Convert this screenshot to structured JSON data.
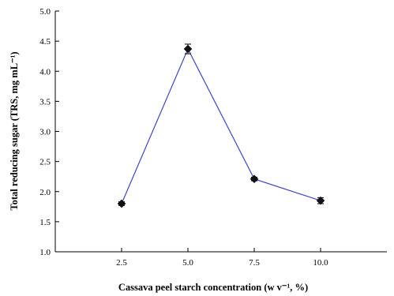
{
  "chart_data": {
    "type": "scatter",
    "x": [
      2.5,
      5.0,
      7.5,
      10.0
    ],
    "series": [
      {
        "values": [
          1.8,
          4.37,
          2.21,
          1.85
        ],
        "errors": [
          0.03,
          0.08,
          0.03,
          0.05
        ],
        "color": "#3b46c8",
        "marker": "diamond",
        "lines": true
      }
    ],
    "xlabel": "Cassava peel starch concentration (w v⁻¹, %)",
    "ylabel": "Total reducing sugar (TRS, mg mL⁻¹)",
    "xlim": [
      0.0,
      12.5
    ],
    "ylim": [
      1.0,
      5.0
    ],
    "xticks": [
      "2.5",
      "5.0",
      "7.5",
      "10.0"
    ],
    "yticks": [
      "1.0",
      "1.5",
      "2.0",
      "2.5",
      "3.0",
      "3.5",
      "4.0",
      "4.5",
      "5.0"
    ],
    "grid": false,
    "legend": "none"
  }
}
